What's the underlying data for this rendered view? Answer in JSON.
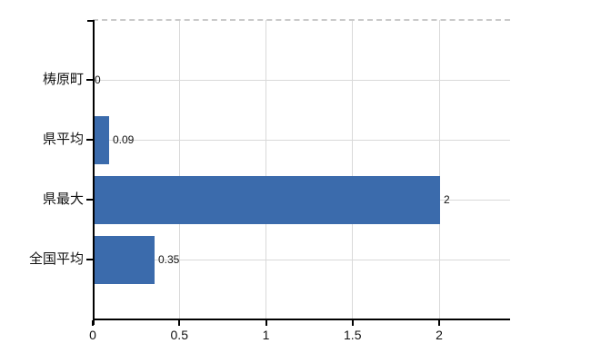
{
  "chart_data": {
    "type": "bar",
    "orientation": "horizontal",
    "title": "",
    "xlabel": "",
    "ylabel": "",
    "categories": [
      "梼原町",
      "県平均",
      "県最大",
      "全国平均"
    ],
    "values": [
      0,
      0.09,
      2,
      0.35
    ],
    "value_labels": [
      "0",
      "0.09",
      "2",
      "0.35"
    ],
    "x_ticks": [
      {
        "value": 0,
        "label": "0"
      },
      {
        "value": 0.5,
        "label": "0.5"
      },
      {
        "value": 1,
        "label": "1"
      },
      {
        "value": 1.5,
        "label": "1.5"
      },
      {
        "value": 2,
        "label": "2"
      }
    ],
    "xlim": [
      0,
      2.41
    ],
    "grid": true,
    "legend": false,
    "colors": {
      "bar": "#3b6bac",
      "gridline": "#d9d9d9",
      "top_border": "#c9c9c9",
      "axis": "#000000",
      "text": "#111111"
    }
  }
}
